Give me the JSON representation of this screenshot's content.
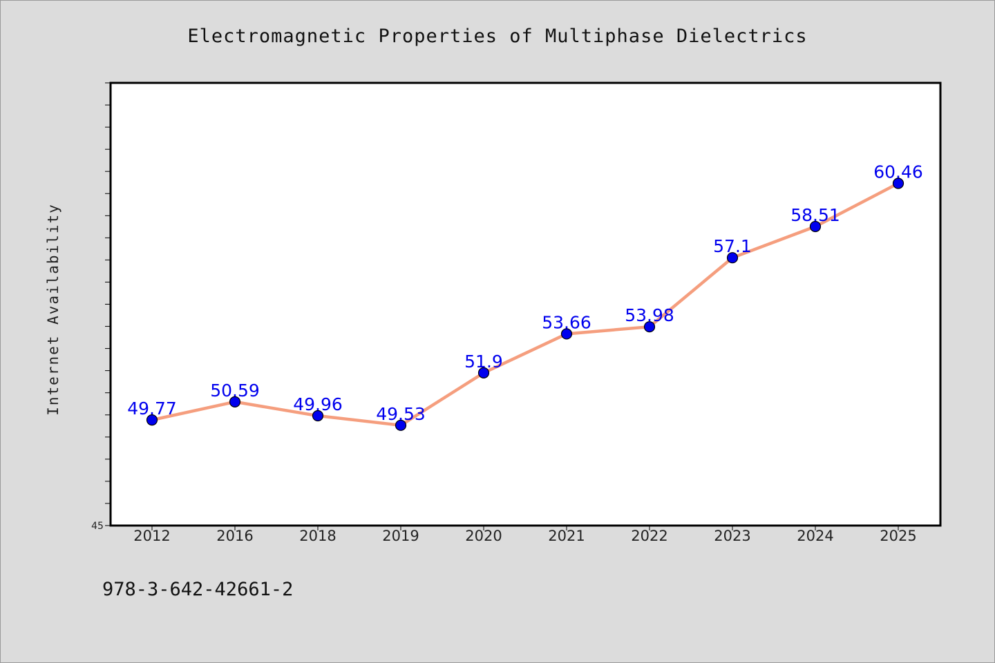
{
  "chart_data": {
    "type": "line",
    "title": "Electromagnetic Properties of Multiphase Dielectrics",
    "xlabel": "",
    "ylabel": "Internet Availability",
    "categories": [
      "2012",
      "2016",
      "2018",
      "2019",
      "2020",
      "2021",
      "2022",
      "2023",
      "2024",
      "2025"
    ],
    "series": [
      {
        "values": [
          49.77,
          50.59,
          49.96,
          49.53,
          51.9,
          53.66,
          53.98,
          57.1,
          58.51,
          60.46
        ],
        "labels": [
          "49.77",
          "50.59",
          "49.96",
          "49.53",
          "51.9",
          "53.66",
          "53.98",
          "57.1",
          "58.51",
          "60.46"
        ]
      }
    ],
    "ylim": [
      45,
      65
    ],
    "ytick_labels": [
      "45"
    ],
    "grid": false,
    "legend": "none"
  },
  "footer_text": "978-3-642-42661-2",
  "colors": {
    "background": "#dcdcdc",
    "plot_background": "#ffffff",
    "line": "#f59e7e",
    "marker": "#0000ee",
    "data_label": "#0000ee",
    "axis": "#000000"
  }
}
